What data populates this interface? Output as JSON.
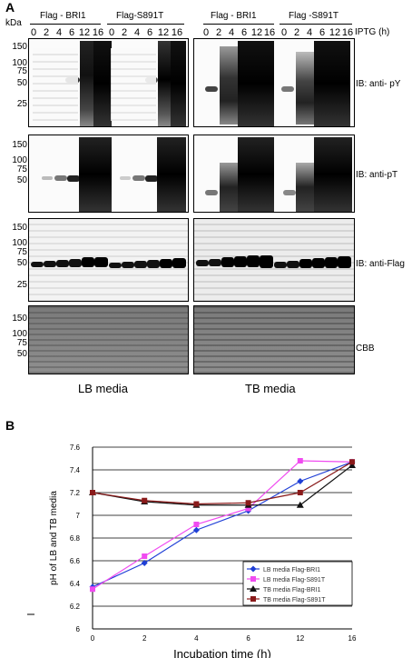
{
  "panel_a": {
    "letter": "A",
    "kda": "kDa",
    "iptg": "IPTG  (h)",
    "groups": [
      "Flag - BRI1",
      "Flag-S891T",
      "Flag - BRI1",
      "Flag -S891T"
    ],
    "lanes": [
      "0",
      "2",
      "4",
      "6",
      "12",
      "16"
    ],
    "mw_sets": {
      "a": [
        "150",
        "100",
        "75",
        "50",
        "25"
      ],
      "b": [
        "150",
        "100",
        "75",
        "50"
      ],
      "c": [
        "150",
        "100",
        "75",
        "50",
        "25"
      ],
      "d": [
        "150",
        "100",
        "75",
        "50"
      ]
    },
    "ib_labels": [
      "IB: anti- pY",
      "IB: anti-pT",
      "IB: anti-Flag",
      "CBB"
    ],
    "media": [
      "LB media",
      "TB media"
    ]
  },
  "panel_b": {
    "letter": "B",
    "chart_data": {
      "type": "line",
      "categories": [
        "0",
        "2",
        "4",
        "6",
        "12",
        "16"
      ],
      "ylabel": "pH of LB and TB  media",
      "xlabel": "Incubation time (h)",
      "yticks": [
        "6",
        "6.2",
        "6.4",
        "6.6",
        "6.8",
        "7",
        "7.2",
        "7.4",
        "7.6"
      ],
      "ylim": [
        6,
        7.6
      ],
      "grid": true,
      "legend_position": "bottom-right",
      "series": [
        {
          "name": "LB media Flag-BRI1",
          "color": "#1f3fd6",
          "marker": "diamond",
          "values": [
            6.37,
            6.58,
            6.87,
            7.04,
            7.3,
            7.47
          ]
        },
        {
          "name": "LB media Flag-S891T",
          "color": "#f04bf0",
          "marker": "square",
          "values": [
            6.35,
            6.64,
            6.92,
            7.06,
            7.48,
            7.47
          ]
        },
        {
          "name": "TB media Flag-BRI1",
          "color": "#111111",
          "marker": "triangle",
          "values": [
            7.2,
            7.12,
            7.09,
            7.09,
            7.09,
            7.44
          ]
        },
        {
          "name": "TB media Flag-S891T",
          "color": "#8a1a1a",
          "marker": "square",
          "values": [
            7.2,
            7.13,
            7.1,
            7.11,
            7.2,
            7.47
          ]
        }
      ]
    }
  }
}
